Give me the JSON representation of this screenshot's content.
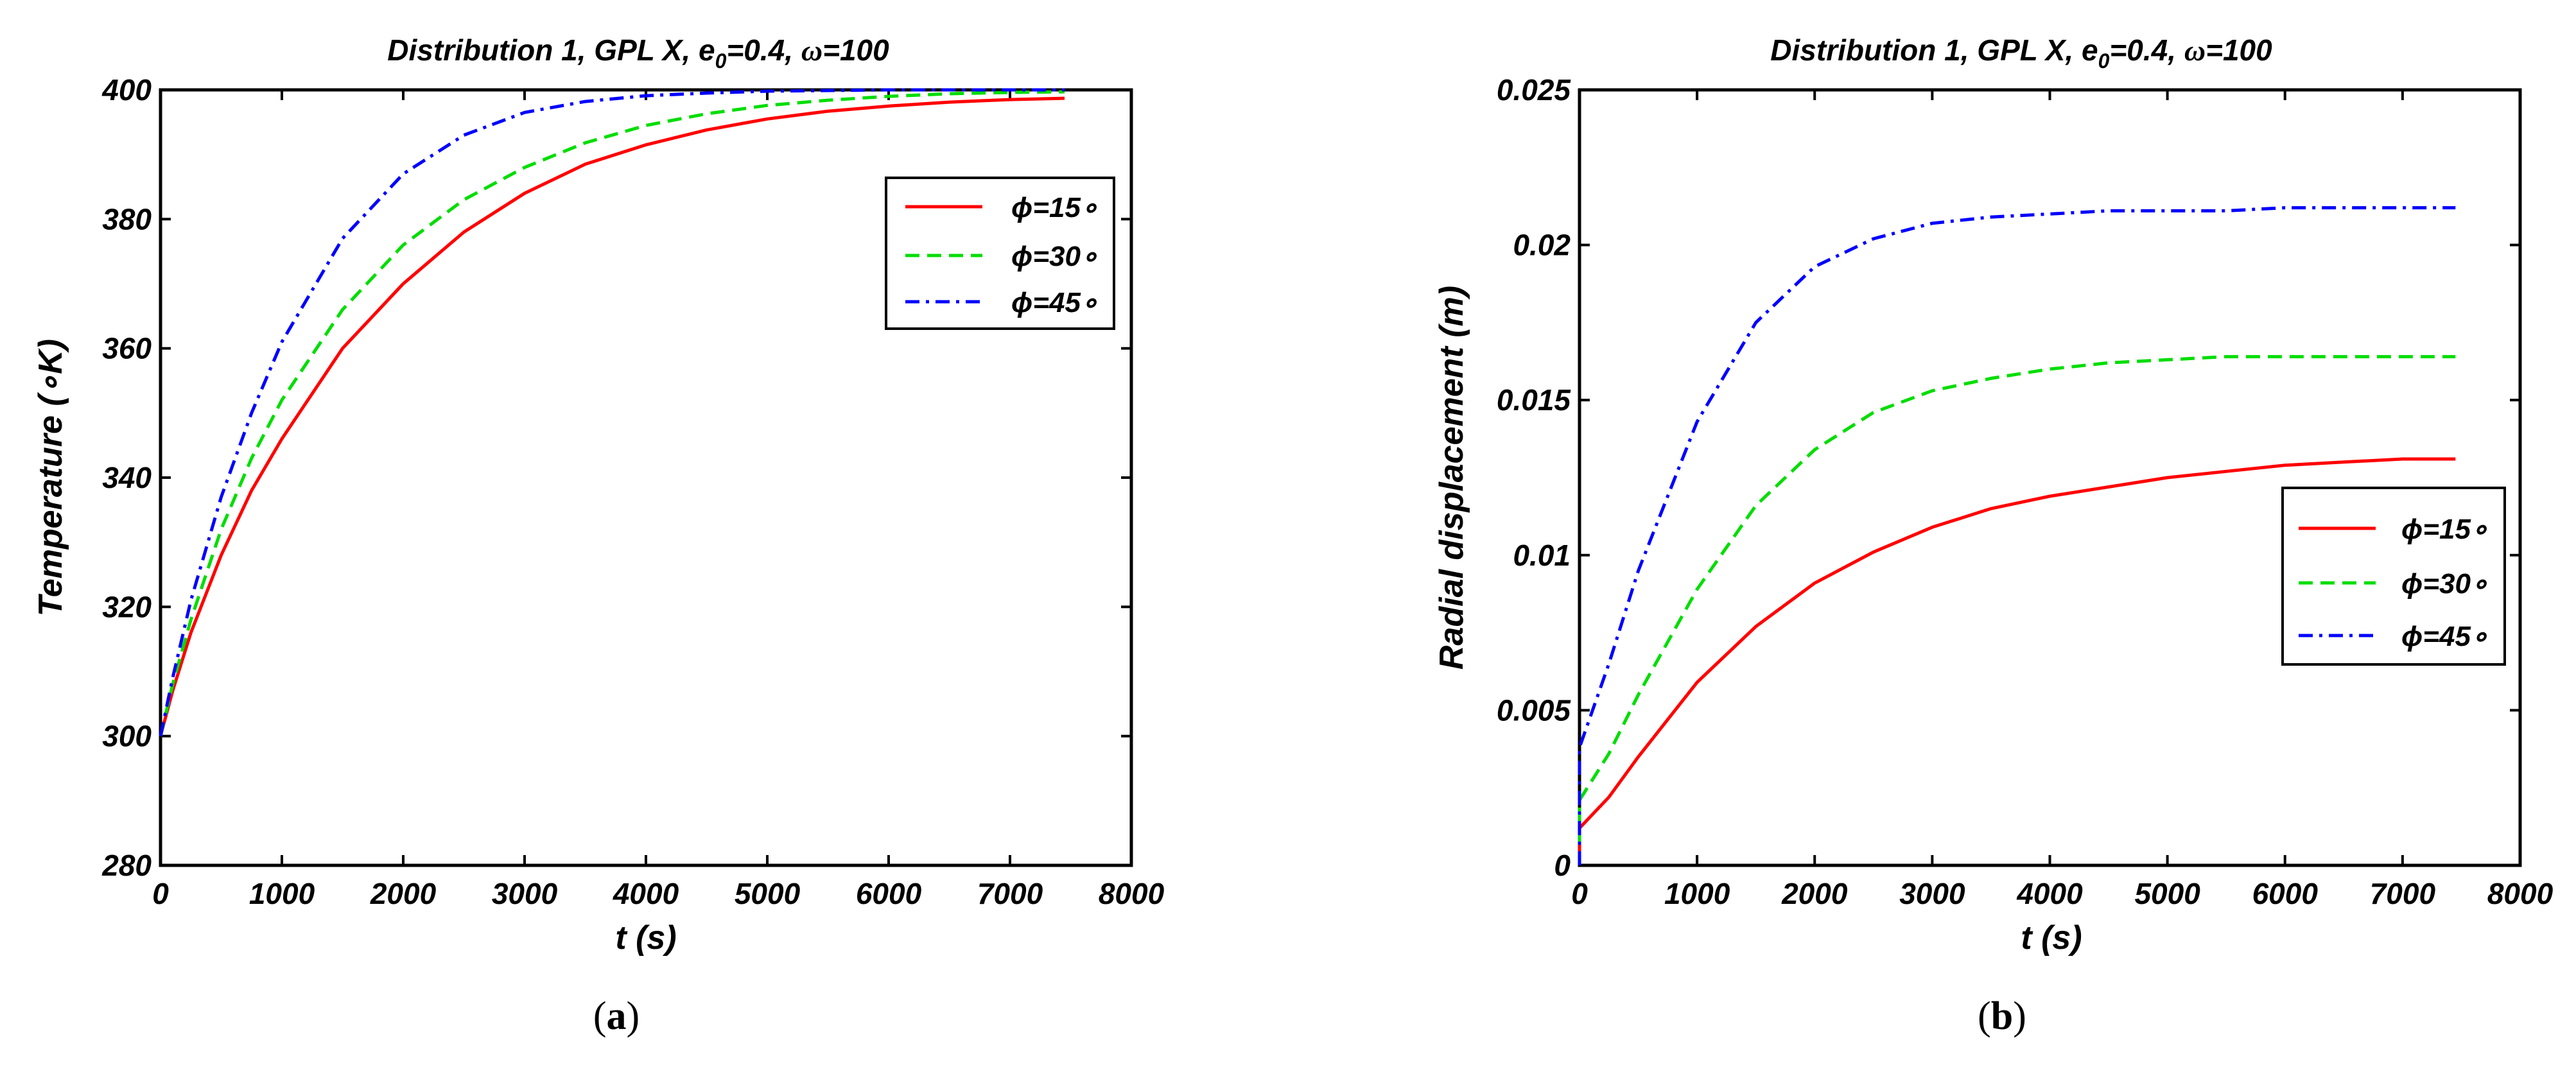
{
  "chart_data": [
    {
      "type": "line",
      "panel_label": "a",
      "title_main": "Distribution 1, GPL X, e",
      "title_sub": "0",
      "title_tail": "=0.4, ",
      "title_omega": "ω",
      "title_end": "=100",
      "xlabel": "t (s)",
      "ylabel": "Temperature (∘K)",
      "xlim": [
        0,
        8000
      ],
      "ylim": [
        280,
        400
      ],
      "xticks": [
        "0",
        "1000",
        "2000",
        "3000",
        "4000",
        "5000",
        "6000",
        "7000",
        "8000"
      ],
      "yticks": [
        "280",
        "300",
        "320",
        "340",
        "360",
        "380",
        "400"
      ],
      "legend_position": "top-right",
      "series": [
        {
          "name": "ϕ=15∘",
          "color": "#ff0000",
          "dash": "solid",
          "x": [
            0,
            100,
            250,
            500,
            750,
            1000,
            1500,
            2000,
            2500,
            3000,
            3500,
            4000,
            4500,
            5000,
            5500,
            6000,
            6500,
            7000,
            7450
          ],
          "y": [
            300,
            307,
            316,
            328,
            338,
            346,
            360,
            370,
            378,
            384,
            388.5,
            391.5,
            393.8,
            395.5,
            396.7,
            397.5,
            398.1,
            398.5,
            398.7
          ]
        },
        {
          "name": "ϕ=30∘",
          "color": "#00dd00",
          "dash": "dashed",
          "x": [
            0,
            100,
            250,
            500,
            750,
            1000,
            1500,
            2000,
            2500,
            3000,
            3500,
            4000,
            4500,
            5000,
            5500,
            6000,
            6500,
            7000,
            7450
          ],
          "y": [
            300,
            308,
            318,
            332,
            343,
            352,
            366,
            376,
            383,
            388,
            391.8,
            394.5,
            396.3,
            397.6,
            398.4,
            399,
            399.4,
            399.6,
            399.7
          ]
        },
        {
          "name": "ϕ=45∘",
          "color": "#0000ff",
          "dash": "dashdot",
          "x": [
            0,
            100,
            250,
            500,
            750,
            1000,
            1500,
            2000,
            2500,
            3000,
            3500,
            4000,
            4500,
            5000,
            5500,
            6000,
            6500,
            7000,
            7450
          ],
          "y": [
            300,
            309,
            321,
            337,
            350,
            361,
            377,
            387,
            393,
            396.5,
            398.2,
            399.1,
            399.5,
            399.8,
            399.9,
            400,
            400,
            400,
            400
          ]
        }
      ]
    },
    {
      "type": "line",
      "panel_label": "b",
      "title_main": "Distribution 1, GPL X, e",
      "title_sub": "0",
      "title_tail": "=0.4, ",
      "title_omega": "ω",
      "title_end": "=100",
      "xlabel": "t (s)",
      "ylabel": "Radial displacement (m)",
      "xlim": [
        0,
        8000
      ],
      "ylim": [
        0,
        0.025
      ],
      "xticks": [
        "0",
        "1000",
        "2000",
        "3000",
        "4000",
        "5000",
        "6000",
        "7000",
        "8000"
      ],
      "yticks": [
        "0",
        "0.005",
        "0.01",
        "0.015",
        "0.02",
        "0.025"
      ],
      "legend_position": "middle-right",
      "series": [
        {
          "name": "ϕ=15∘",
          "color": "#ff0000",
          "dash": "solid",
          "x": [
            0,
            0,
            250,
            500,
            1000,
            1500,
            2000,
            2500,
            3000,
            3500,
            4000,
            4500,
            5000,
            5500,
            6000,
            6500,
            7000,
            7450
          ],
          "y": [
            0,
            0.0012,
            0.0022,
            0.0035,
            0.0059,
            0.0077,
            0.0091,
            0.0101,
            0.0109,
            0.0115,
            0.0119,
            0.0122,
            0.0125,
            0.0127,
            0.0129,
            0.013,
            0.0131,
            0.0131
          ]
        },
        {
          "name": "ϕ=30∘",
          "color": "#00dd00",
          "dash": "dashed",
          "x": [
            0,
            0,
            250,
            500,
            1000,
            1500,
            2000,
            2500,
            3000,
            3500,
            4000,
            4500,
            5000,
            5500,
            6000,
            6500,
            7000,
            7450
          ],
          "y": [
            0,
            0.0021,
            0.0036,
            0.0055,
            0.0089,
            0.0116,
            0.0134,
            0.0146,
            0.0153,
            0.0157,
            0.016,
            0.0162,
            0.0163,
            0.0164,
            0.0164,
            0.0164,
            0.0164,
            0.0164
          ]
        },
        {
          "name": "ϕ=45∘",
          "color": "#0000ff",
          "dash": "dashdot",
          "x": [
            0,
            0,
            250,
            500,
            1000,
            1500,
            2000,
            2500,
            3000,
            3500,
            4000,
            4500,
            5000,
            5500,
            6000,
            6500,
            7000,
            7450
          ],
          "y": [
            0,
            0.0038,
            0.0065,
            0.0095,
            0.0143,
            0.0175,
            0.0193,
            0.0202,
            0.0207,
            0.0209,
            0.021,
            0.0211,
            0.0211,
            0.0211,
            0.0212,
            0.0212,
            0.0212,
            0.0212
          ]
        }
      ]
    }
  ]
}
